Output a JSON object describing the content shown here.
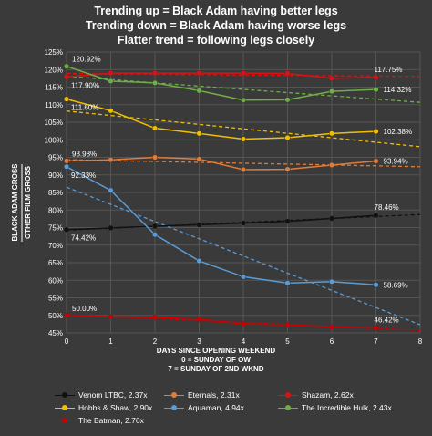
{
  "header": {
    "line1": "Trending up = Black Adam having better legs",
    "line2": "Trending down = Black Adam having worse legs",
    "line3": "Flatter trend = following legs closely"
  },
  "axis_labels": {
    "y_top": "BLACK ADAM GROSS",
    "y_bottom": "OTHER FILM GROSS",
    "x_line1": "DAYS SINCE OPENING WEEKEND",
    "x_line2": "0 = SUNDAY OF OW",
    "x_line3": "7 = SUNDAY OF 2ND WKND"
  },
  "colors": {
    "background": "#3a3a3a",
    "grid": "#555555"
  },
  "chart_data": {
    "type": "line",
    "ylim": [
      45,
      125
    ],
    "xlim": [
      0,
      8
    ],
    "yticks": [
      "45%",
      "50%",
      "55%",
      "60%",
      "65%",
      "70%",
      "75%",
      "80%",
      "85%",
      "90%",
      "95%",
      "100%",
      "105%",
      "110%",
      "115%",
      "120%",
      "125%"
    ],
    "xticks": [
      "0",
      "1",
      "2",
      "3",
      "4",
      "5",
      "6",
      "7",
      "8"
    ],
    "grid": true,
    "trendlines": true,
    "legend_position": "bottom",
    "series": [
      {
        "name": "Venom LTBC, 2.37x",
        "color": "#111111",
        "x": [
          0,
          1,
          2,
          3,
          4,
          5,
          6,
          7
        ],
        "values": [
          74.42,
          74.9,
          75.4,
          75.8,
          76.3,
          76.8,
          77.6,
          78.46
        ]
      },
      {
        "name": "Eternals, 2.31x",
        "color": "#e07b39",
        "x": [
          0,
          1,
          2,
          3,
          4,
          5,
          6,
          7
        ],
        "values": [
          93.98,
          94.3,
          95.0,
          94.5,
          91.5,
          91.6,
          92.8,
          93.94
        ]
      },
      {
        "name": "Shazam, 2.62x",
        "color": "#dd1111",
        "x": [
          0,
          1,
          2,
          3,
          4,
          5,
          6,
          7
        ],
        "values": [
          117.9,
          119.0,
          119.0,
          119.0,
          119.0,
          118.9,
          117.5,
          117.75
        ]
      },
      {
        "name": "Hobbs & Shaw, 2.90x",
        "color": "#f0c000",
        "x": [
          0,
          1,
          2,
          3,
          4,
          5,
          6,
          7
        ],
        "values": [
          111.6,
          108.3,
          103.3,
          101.8,
          100.2,
          100.6,
          101.8,
          102.38
        ]
      },
      {
        "name": "Aquaman, 4.94x",
        "color": "#5b9bd5",
        "x": [
          0,
          1,
          2,
          3,
          4,
          5,
          6,
          7
        ],
        "values": [
          92.33,
          85.6,
          73.0,
          65.5,
          61.0,
          59.2,
          59.6,
          58.69
        ]
      },
      {
        "name": "The Incredible Hulk, 2.43x",
        "color": "#70ad47",
        "x": [
          0,
          1,
          2,
          3,
          4,
          5,
          6,
          7
        ],
        "values": [
          120.92,
          116.7,
          116.2,
          114.0,
          111.3,
          111.4,
          113.8,
          114.32
        ]
      },
      {
        "name": "The Batman, 2.76x",
        "color": "#cc0000",
        "x": [
          0,
          1,
          2,
          3,
          4,
          5,
          6,
          7
        ],
        "values": [
          50.0,
          49.6,
          49.4,
          48.9,
          47.6,
          47.3,
          46.7,
          46.42
        ]
      }
    ],
    "annotations": [
      {
        "series": 0,
        "x": 0,
        "y": 74.42,
        "text": "74.42%",
        "pos": "below"
      },
      {
        "series": 0,
        "x": 7,
        "y": 78.46,
        "text": "78.46%",
        "pos": "above"
      },
      {
        "series": 1,
        "x": 0,
        "y": 93.98,
        "text": "93.98%",
        "pos": "above"
      },
      {
        "series": 1,
        "x": 7,
        "y": 93.94,
        "text": "93.94%",
        "pos": "right"
      },
      {
        "series": 2,
        "x": 0,
        "y": 117.9,
        "text": "117.90%",
        "pos": "below"
      },
      {
        "series": 2,
        "x": 7,
        "y": 117.75,
        "text": "117.75%",
        "pos": "above"
      },
      {
        "series": 3,
        "x": 0,
        "y": 111.6,
        "text": "111.60%",
        "pos": "below"
      },
      {
        "series": 3,
        "x": 7,
        "y": 102.38,
        "text": "102.38%",
        "pos": "right"
      },
      {
        "series": 4,
        "x": 0,
        "y": 92.33,
        "text": "92.33%",
        "pos": "below"
      },
      {
        "series": 4,
        "x": 7,
        "y": 58.69,
        "text": "58.69%",
        "pos": "right"
      },
      {
        "series": 5,
        "x": 0,
        "y": 120.92,
        "text": "120.92%",
        "pos": "above"
      },
      {
        "series": 5,
        "x": 7,
        "y": 114.32,
        "text": "114.32%",
        "pos": "right"
      },
      {
        "series": 6,
        "x": 0,
        "y": 50.0,
        "text": "50.00%",
        "pos": "above"
      },
      {
        "series": 6,
        "x": 7,
        "y": 46.42,
        "text": "46.42%",
        "pos": "above"
      }
    ]
  }
}
